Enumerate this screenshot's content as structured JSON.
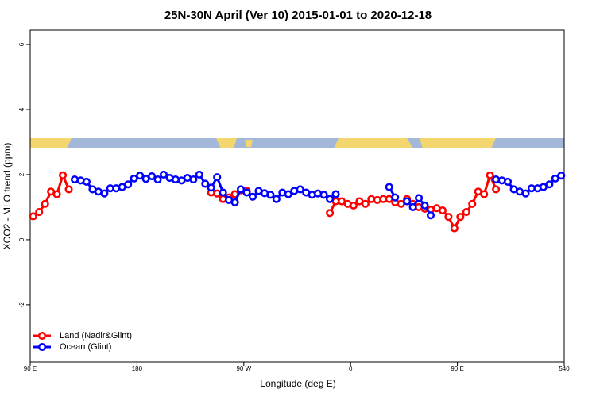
{
  "chart_data": {
    "type": "line",
    "title": "25N-30N April (Ver 10)   2015-01-01 to 2020-12-18",
    "x_label": "Longitude (deg E)",
    "y_label": "XCO2 - MLO trend (ppm)",
    "xlim": [
      90,
      540
    ],
    "ylim": [
      -3.76,
      6.44
    ],
    "xticks": [
      {
        "value": 90,
        "label": "90 E"
      },
      180,
      {
        "value": 270,
        "label": "90 W"
      },
      {
        "value": 360,
        "label": "0"
      },
      {
        "value": 450,
        "label": "90 E"
      },
      540
    ],
    "yticks": [
      -2,
      0,
      2,
      4,
      6
    ],
    "legend": "bottom-left",
    "x": [
      92.5,
      97.5,
      102.5,
      107.5,
      112.5,
      117.5,
      122.5,
      127.5,
      132.5,
      137.5,
      142.5,
      147.5,
      152.5,
      157.5,
      162.5,
      167.5,
      172.5,
      177.5,
      182.5,
      187.5,
      192.5,
      197.5,
      202.5,
      207.5,
      212.5,
      217.5,
      222.5,
      227.5,
      232.5,
      237.5,
      242.5,
      247.5,
      252.5,
      257.5,
      262.5,
      267.5,
      272.5,
      277.5,
      282.5,
      287.5,
      292.5,
      297.5,
      302.5,
      307.5,
      312.5,
      317.5,
      322.5,
      327.5,
      332.5,
      337.5,
      342.5,
      347.5,
      352.5,
      357.5,
      362.5,
      367.5,
      372.5,
      377.5,
      382.5,
      387.5,
      392.5,
      397.5,
      402.5,
      407.5,
      412.5,
      417.5,
      422.5,
      427.5,
      432.5,
      437.5,
      442.5,
      447.5,
      452.5,
      457.5,
      462.5,
      467.5,
      472.5,
      477.5,
      482.5,
      487.5,
      492.5,
      497.5,
      502.5,
      507.5,
      512.5,
      517.5,
      522.5,
      527.5,
      532.5,
      537.5
    ],
    "series": [
      {
        "name": "Land (Nadir&Glint)",
        "color": "#ff0000",
        "values": [
          0.72,
          0.85,
          1.1,
          1.48,
          1.4,
          1.98,
          1.55,
          null,
          null,
          null,
          null,
          null,
          null,
          null,
          null,
          null,
          null,
          null,
          null,
          null,
          null,
          null,
          null,
          null,
          null,
          null,
          null,
          null,
          null,
          null,
          1.45,
          1.42,
          1.25,
          1.3,
          1.4,
          1.52,
          1.5,
          null,
          null,
          null,
          null,
          null,
          null,
          null,
          null,
          null,
          null,
          null,
          null,
          null,
          0.82,
          1.18,
          1.18,
          1.1,
          1.05,
          1.18,
          1.1,
          1.25,
          1.22,
          1.25,
          1.25,
          1.15,
          1.1,
          1.25,
          1.1,
          1.0,
          0.95,
          0.92,
          0.97,
          0.9,
          0.7,
          0.35,
          0.7,
          0.85,
          1.1,
          1.48,
          1.4,
          1.98,
          1.55,
          null,
          null,
          null,
          null,
          null,
          null,
          null,
          null,
          null,
          null,
          null
        ]
      },
      {
        "name": "Ocean (Glint)",
        "color": "#0000ff",
        "values": [
          null,
          null,
          null,
          null,
          null,
          null,
          null,
          1.85,
          1.82,
          1.78,
          1.55,
          1.48,
          1.42,
          1.58,
          1.58,
          1.62,
          1.7,
          1.88,
          1.97,
          1.87,
          1.95,
          1.85,
          2.0,
          1.9,
          1.85,
          1.82,
          1.9,
          1.85,
          2.0,
          1.72,
          1.6,
          1.92,
          1.45,
          1.22,
          1.15,
          1.55,
          1.45,
          1.32,
          1.5,
          1.43,
          1.38,
          1.25,
          1.45,
          1.4,
          1.5,
          1.55,
          1.45,
          1.38,
          1.42,
          1.38,
          1.25,
          1.4,
          null,
          null,
          null,
          null,
          null,
          null,
          null,
          null,
          1.62,
          1.3,
          null,
          1.18,
          1.0,
          1.28,
          1.05,
          0.75,
          null,
          null,
          null,
          null,
          null,
          null,
          null,
          null,
          null,
          null,
          1.85,
          1.82,
          1.78,
          1.55,
          1.48,
          1.42,
          1.58,
          1.58,
          1.62,
          1.7,
          1.88,
          1.97
        ]
      }
    ]
  }
}
